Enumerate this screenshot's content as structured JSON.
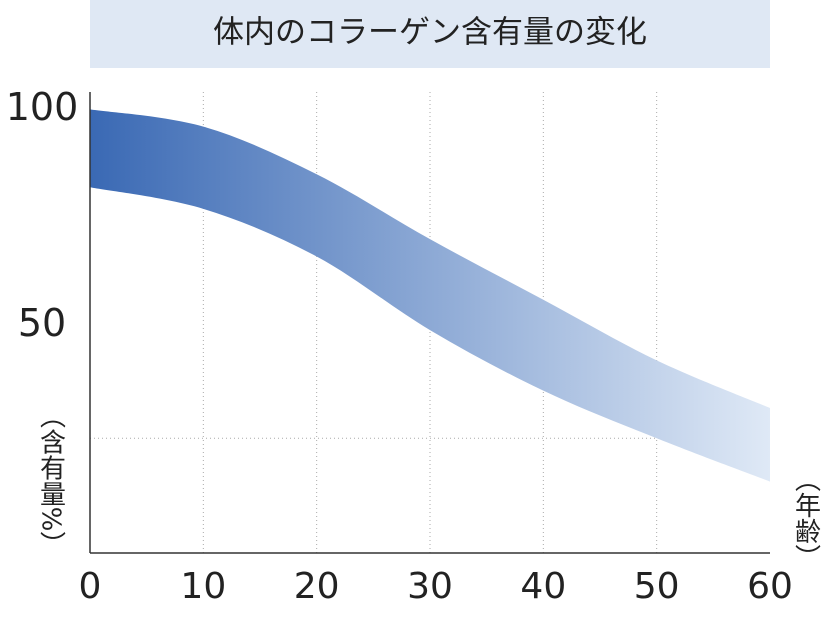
{
  "chart_data": {
    "type": "band",
    "title": "体内のコラーゲン含有量の変化",
    "y_label": "（含有量%）",
    "x_label": "（年齢）",
    "x": [
      0,
      10,
      20,
      30,
      40,
      50,
      60
    ],
    "upper": [
      100,
      96,
      85,
      70,
      56,
      42,
      31
    ],
    "lower": [
      82,
      77,
      66,
      49,
      35,
      24,
      14
    ],
    "colors": [
      "#3a69b4",
      "#dfe9f6"
    ],
    "xlim": [
      0,
      60
    ],
    "xticks": [
      0,
      10,
      20,
      30,
      40,
      50,
      60
    ],
    "ylim": [
      -2.5,
      104
    ],
    "yticks": [
      50,
      100
    ],
    "reference_line": 24,
    "grid": "x"
  }
}
